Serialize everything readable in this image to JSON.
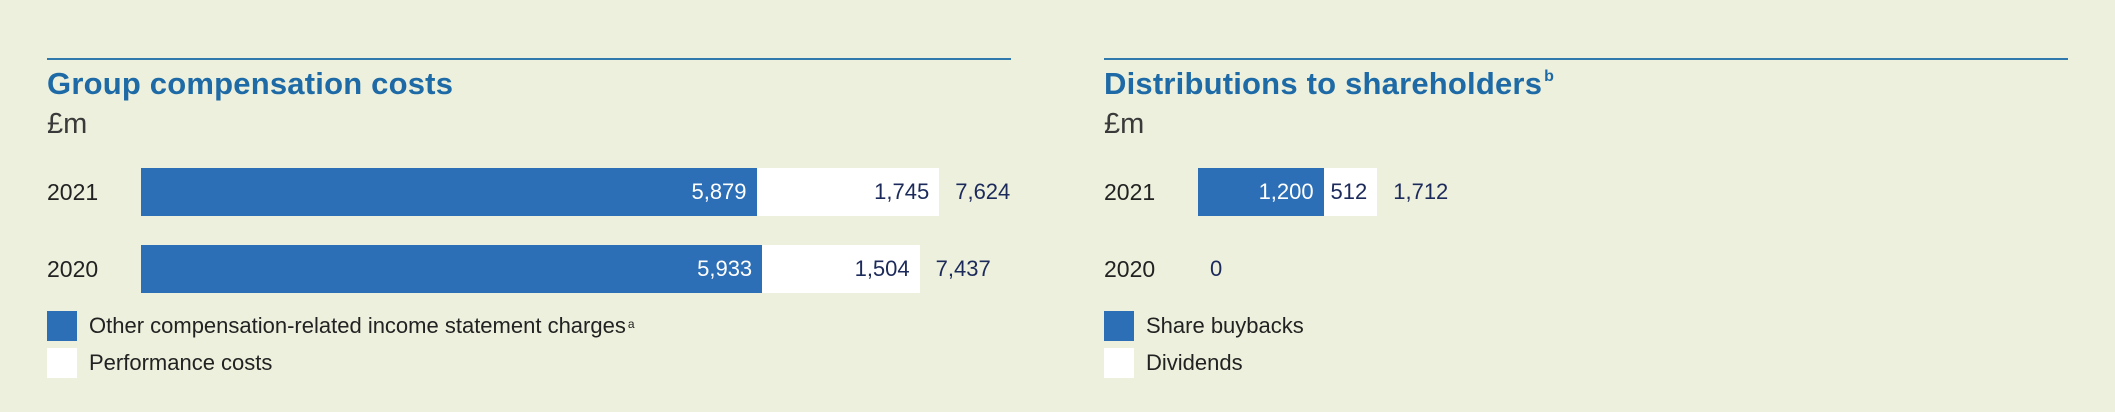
{
  "chart_data": [
    {
      "type": "bar",
      "orientation": "horizontal",
      "stacked": true,
      "title": "Group compensation costs",
      "title_footnote": "",
      "unit": "£m",
      "categories": [
        "2021",
        "2020"
      ],
      "series": [
        {
          "name": "Other compensation-related income statement charges",
          "footnote": "a",
          "color": "#2d6fb6",
          "values": [
            5879,
            5933
          ],
          "labels": [
            "5,879",
            "5,933"
          ]
        },
        {
          "name": "Performance costs",
          "footnote": "",
          "color": "#ffffff",
          "values": [
            1745,
            1504
          ],
          "labels": [
            "1,745",
            "1,504"
          ]
        }
      ],
      "totals": [
        7624,
        7437
      ],
      "total_labels": [
        "7,624",
        "7,437"
      ]
    },
    {
      "type": "bar",
      "orientation": "horizontal",
      "stacked": true,
      "title": "Distributions to shareholders",
      "title_footnote": "b",
      "unit": "£m",
      "categories": [
        "2021",
        "2020"
      ],
      "series": [
        {
          "name": "Share buybacks",
          "footnote": "",
          "color": "#2d6fb6",
          "values": [
            1200,
            0
          ],
          "labels": [
            "1,200",
            ""
          ]
        },
        {
          "name": "Dividends",
          "footnote": "",
          "color": "#ffffff",
          "values": [
            512,
            0
          ],
          "labels": [
            "512",
            ""
          ]
        }
      ],
      "totals": [
        1712,
        0
      ],
      "total_labels": [
        "1,712",
        "0"
      ]
    }
  ]
}
